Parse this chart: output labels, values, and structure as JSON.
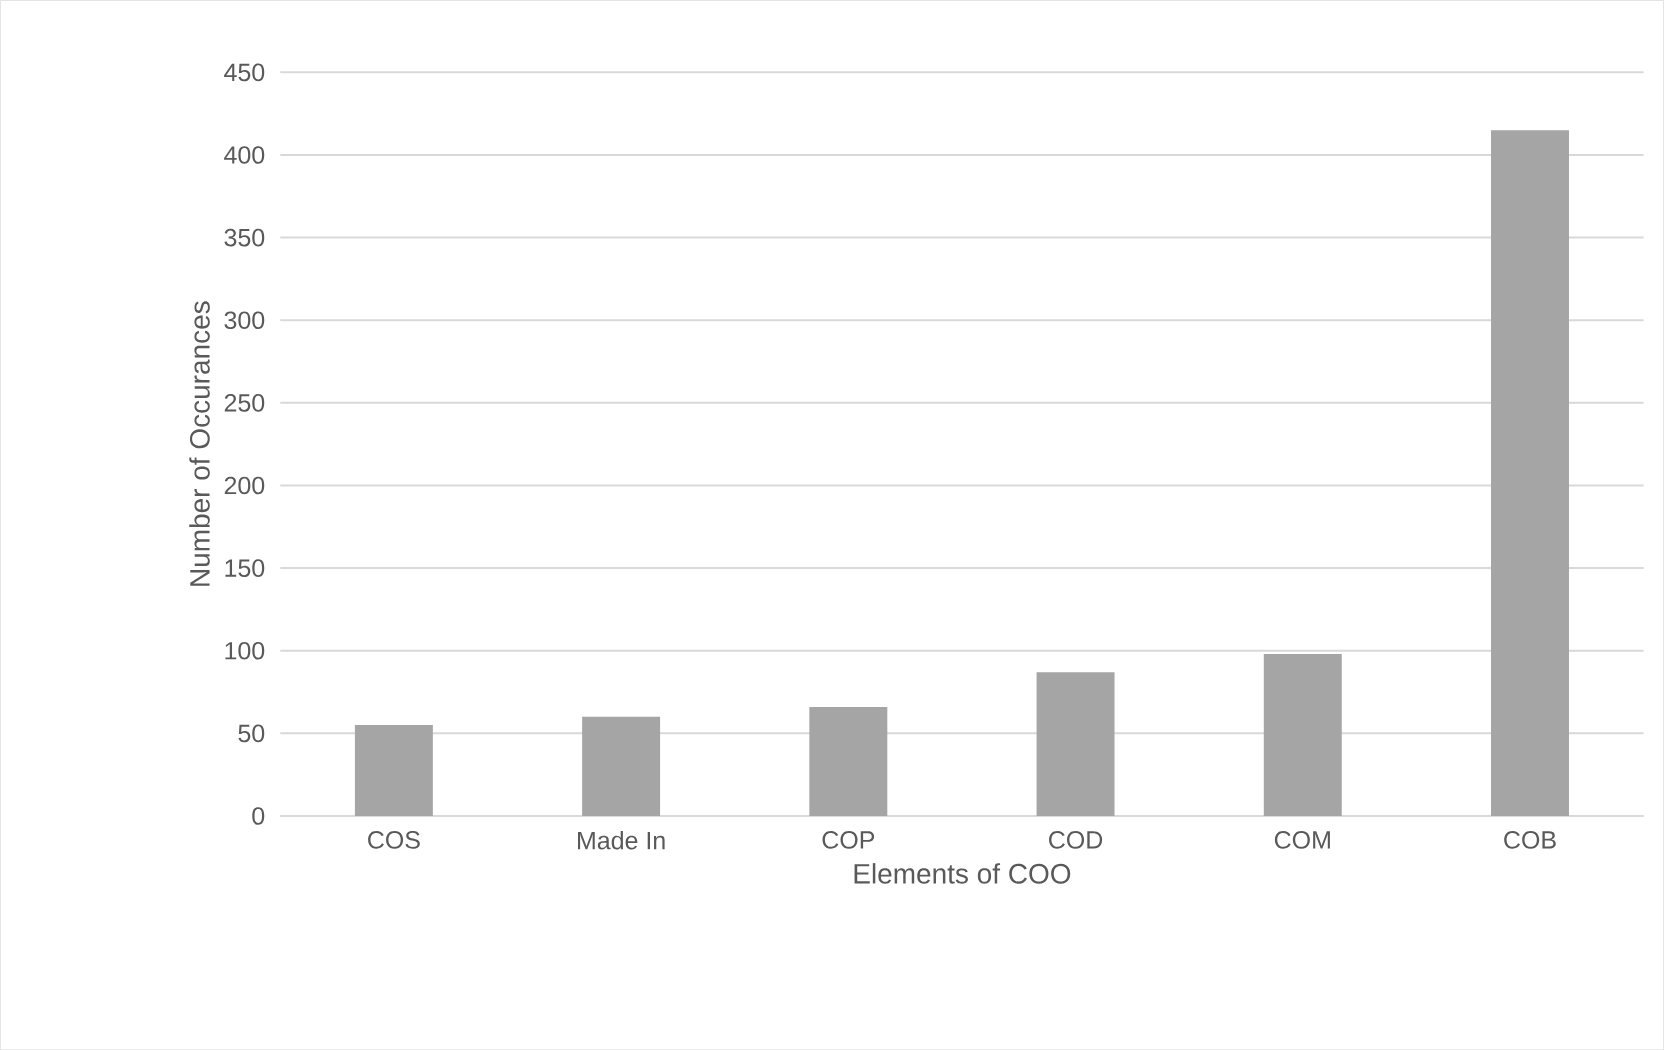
{
  "chart_data": {
    "type": "bar",
    "xlabel": "Elements of COO",
    "ylabel": "Number of Occurances",
    "categories": [
      "COS",
      "Made In",
      "COP",
      "COD",
      "COM",
      "COB"
    ],
    "values": [
      55,
      60,
      66,
      87,
      98,
      415
    ],
    "color": "#a5a5a5",
    "ylim": [
      0,
      450
    ],
    "yticks": [
      0,
      50,
      100,
      150,
      200,
      250,
      300,
      350,
      400,
      450
    ],
    "grid": "y"
  }
}
